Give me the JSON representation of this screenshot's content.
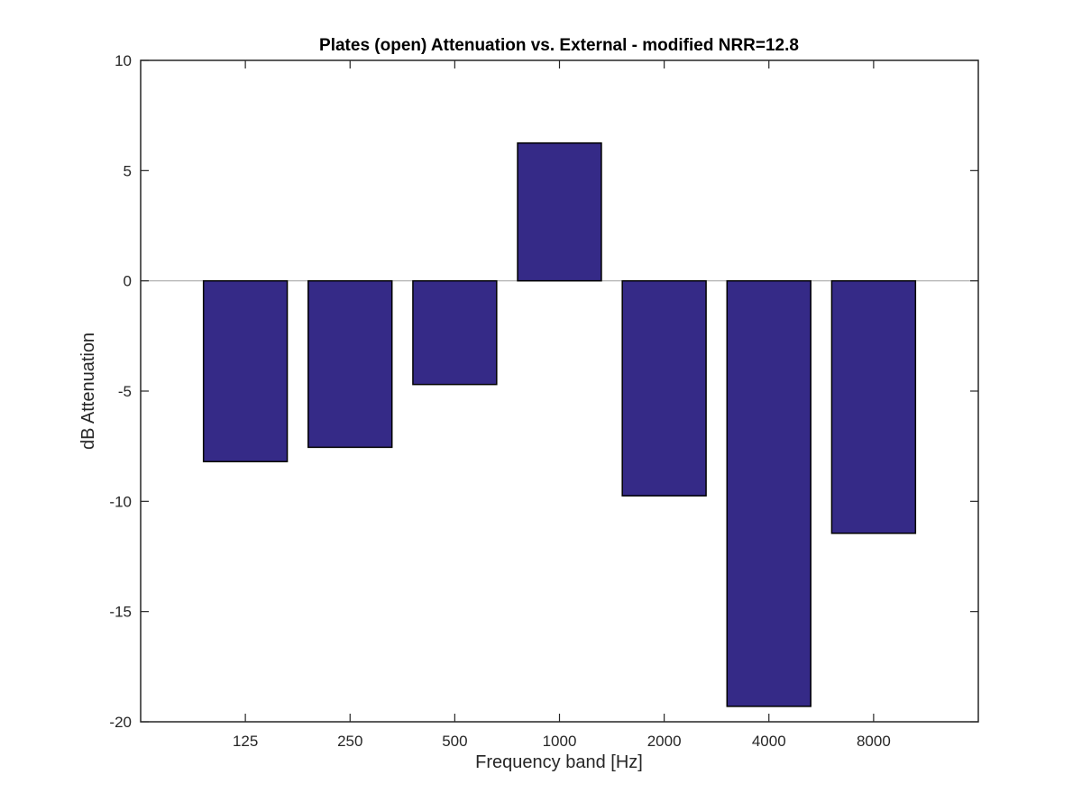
{
  "chart_data": {
    "type": "bar",
    "title": "Plates (open) Attenuation vs. External - modified NRR=12.8",
    "xlabel": "Frequency band [Hz]",
    "ylabel": "dB Attenuation",
    "categories": [
      "125",
      "250",
      "500",
      "1000",
      "2000",
      "4000",
      "8000"
    ],
    "values": [
      -8.2,
      -7.55,
      -4.7,
      6.25,
      -9.75,
      -19.3,
      -11.45
    ],
    "ylim": [
      -20,
      10
    ],
    "yticks": [
      10,
      5,
      0,
      -5,
      -10,
      -15,
      -20
    ],
    "grid": false,
    "legend": false,
    "colors": {
      "bar_fill": "#352a87",
      "bar_edge": "#000000",
      "baseline": "#aaaaaa",
      "axis": "#262626"
    }
  }
}
